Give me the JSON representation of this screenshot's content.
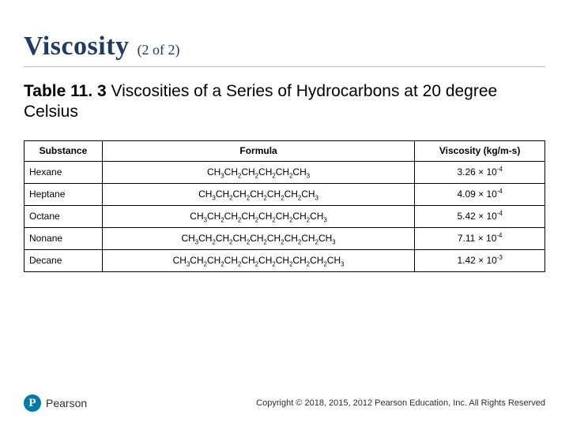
{
  "title": {
    "main": "Viscosity",
    "paren": "(2 of 2)"
  },
  "caption": {
    "label": "Table 11. 3",
    "rest": " Viscosities of a Series of Hydrocarbons at 20 degree Celsius"
  },
  "table": {
    "columns": [
      "Substance",
      "Formula",
      "Viscosity (kg/m-s)"
    ],
    "col_widths_pct": [
      15,
      60,
      25
    ],
    "col_align": [
      "left",
      "center",
      "center"
    ],
    "header_fontsize": 12,
    "cell_fontsize": 12,
    "border_color": "#000000",
    "rows": [
      {
        "substance": "Hexane",
        "groups": [
          "CH3",
          "CH2",
          "CH2",
          "CH2",
          "CH2",
          "CH3"
        ],
        "coef": "3.26",
        "exp": "-4"
      },
      {
        "substance": "Heptane",
        "groups": [
          "CH3",
          "CH2",
          "CH2",
          "CH2",
          "CH2",
          "CH2",
          "CH3"
        ],
        "coef": "4.09",
        "exp": "-4"
      },
      {
        "substance": "Octane",
        "groups": [
          "CH3",
          "CH2",
          "CH2",
          "CH2",
          "CH2",
          "CH2",
          "CH2",
          "CH3"
        ],
        "coef": "5.42",
        "exp": "-4"
      },
      {
        "substance": "Nonane",
        "groups": [
          "CH3",
          "CH2",
          "CH2",
          "CH2",
          "CH2",
          "CH2",
          "CH2",
          "CH2",
          "CH3"
        ],
        "coef": "7.11",
        "exp": "-4"
      },
      {
        "substance": "Decane",
        "groups": [
          "CH3",
          "CH2",
          "CH2",
          "CH2",
          "CH2",
          "CH2",
          "CH2",
          "CH2",
          "CH2",
          "CH3"
        ],
        "coef": "1.42",
        "exp": "-3"
      }
    ]
  },
  "logo": {
    "initial": "P",
    "name": "Pearson",
    "badge_color": "#0078a8"
  },
  "copyright": "Copyright © 2018, 2015, 2012 Pearson Education, Inc. All Rights Reserved"
}
